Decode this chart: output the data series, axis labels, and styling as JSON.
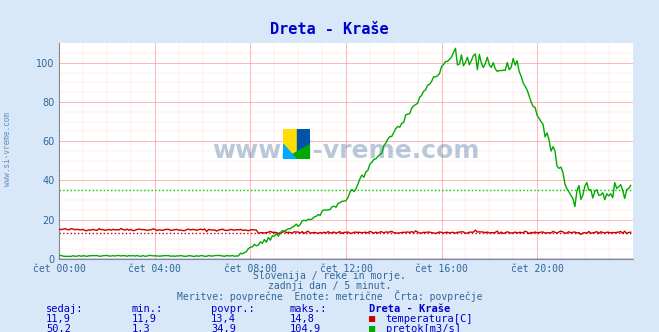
{
  "title": "Dreta - Kraše",
  "title_color": "#0000cc",
  "bg_color": "#d8e8f8",
  "plot_bg_color": "#ffffff",
  "grid_color_major": "#ff9999",
  "grid_color_minor": "#ffdddd",
  "xlabel_ticks": [
    "čet 00:00",
    "čet 04:00",
    "čet 08:00",
    "čet 12:00",
    "čet 16:00",
    "čet 20:00"
  ],
  "xlim": [
    0,
    288
  ],
  "ylim": [
    0,
    110
  ],
  "yticks": [
    0,
    20,
    40,
    60,
    80,
    100
  ],
  "avg_temp": 13.4,
  "avg_flow": 34.9,
  "temp_color": "#cc0000",
  "flow_color": "#00aa00",
  "avg_color_temp": "#cc0000",
  "avg_color_flow": "#00cc00",
  "watermark_color": "#336699",
  "subtitle_lines": [
    "Slovenija / reke in morje.",
    "zadnji dan / 5 minut.",
    "Meritve: povprečne  Enote: metrične  Črta: povprečje"
  ],
  "subtitle_color": "#336699",
  "table_header": [
    "sedaj:",
    "min.:",
    "povpr.:",
    "maks.:",
    "Dreta - Kraše"
  ],
  "table_row1": [
    "11,9",
    "11,9",
    "13,4",
    "14,8",
    "temperatura[C]"
  ],
  "table_row2": [
    "50,2",
    "1,3",
    "34,9",
    "104,9",
    "pretok[m3/s]"
  ],
  "table_color": "#0000cc",
  "sidebar_text": "www.si-vreme.com",
  "sidebar_color": "#336699"
}
